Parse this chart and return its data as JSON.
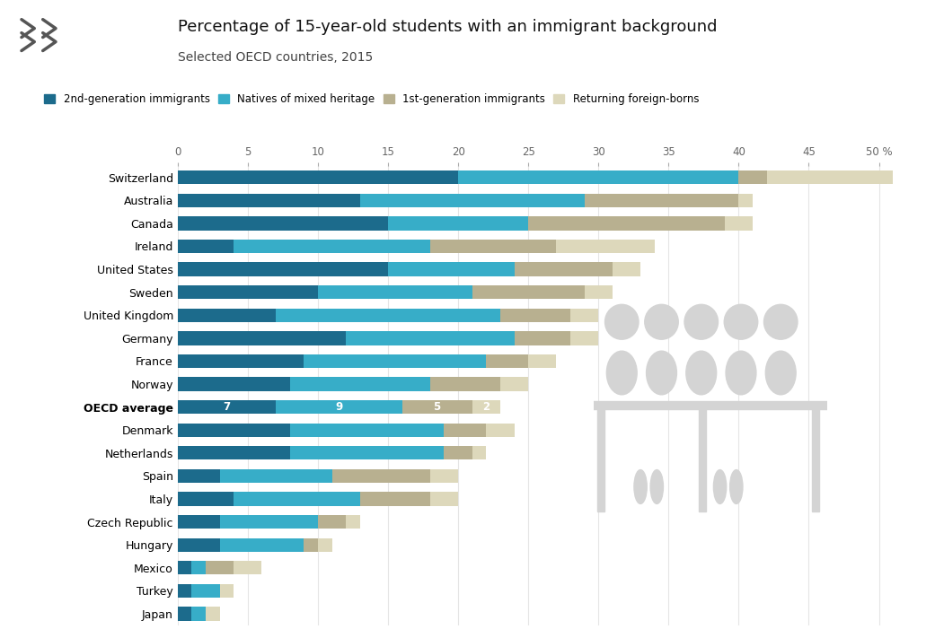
{
  "title": "Percentage of 15-year-old students with an immigrant background",
  "subtitle": "Selected OECD countries, 2015",
  "categories": [
    "Switzerland",
    "Australia",
    "Canada",
    "Ireland",
    "United States",
    "Sweden",
    "United Kingdom",
    "Germany",
    "France",
    "Norway",
    "OECD average",
    "Denmark",
    "Netherlands",
    "Spain",
    "Italy",
    "Czech Republic",
    "Hungary",
    "Mexico",
    "Turkey",
    "Japan"
  ],
  "series": {
    "2nd-generation immigrants": [
      20,
      13,
      15,
      4,
      15,
      10,
      7,
      12,
      9,
      8,
      7,
      8,
      8,
      3,
      4,
      3,
      3,
      1,
      1,
      1
    ],
    "Natives of mixed heritage": [
      20,
      16,
      10,
      14,
      9,
      11,
      16,
      12,
      13,
      10,
      9,
      11,
      11,
      8,
      9,
      7,
      6,
      1,
      2,
      1
    ],
    "1st-generation immigrants": [
      2,
      11,
      14,
      9,
      7,
      8,
      5,
      4,
      3,
      5,
      5,
      3,
      2,
      7,
      5,
      2,
      1,
      2,
      0,
      0
    ],
    "Returning foreign-borns": [
      9,
      1,
      2,
      7,
      2,
      2,
      2,
      2,
      2,
      2,
      2,
      2,
      1,
      2,
      2,
      1,
      1,
      2,
      1,
      1
    ]
  },
  "oecd_labels": [
    "7",
    "9",
    "5",
    "2"
  ],
  "colors": {
    "2nd-generation immigrants": "#1c6b8c",
    "Natives of mixed heritage": "#37adc8",
    "1st-generation immigrants": "#b8b090",
    "Returning foreign-borns": "#ddd8bb"
  },
  "icon_color": "#d4d4d4",
  "xlim": [
    0,
    52
  ],
  "xticks": [
    0,
    5,
    10,
    15,
    20,
    25,
    30,
    35,
    40,
    45,
    50
  ],
  "background_color": "#ffffff",
  "title_fontsize": 13,
  "subtitle_fontsize": 10
}
